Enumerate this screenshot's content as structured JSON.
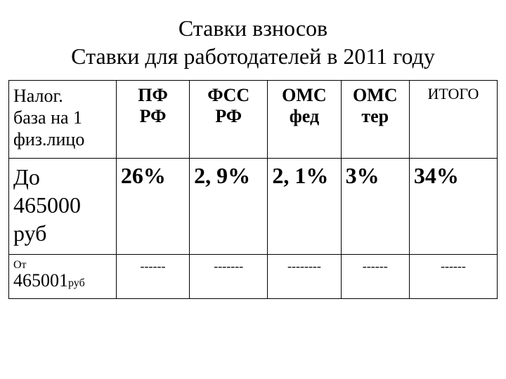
{
  "title_line1": "Ставки взносов",
  "title_line2": "Ставки для работодателей в 2011 году",
  "table": {
    "columns": [
      {
        "lines": [
          "Налог.",
          "база на 1",
          "физ.лицо"
        ],
        "align": "left",
        "fontsize": 26
      },
      {
        "lines": [
          "ПФ",
          "РФ"
        ],
        "align": "center",
        "fontsize": 26
      },
      {
        "lines": [
          "ФСС",
          "РФ"
        ],
        "align": "center",
        "fontsize": 26
      },
      {
        "lines": [
          "ОМС",
          "фед"
        ],
        "align": "center",
        "fontsize": 26
      },
      {
        "lines": [
          "ОМС",
          "тер"
        ],
        "align": "center",
        "fontsize": 26
      },
      {
        "lines": [
          "ИТОГО"
        ],
        "align": "center",
        "fontsize": 22
      }
    ],
    "rows": [
      {
        "label_lines": [
          "До",
          "465000",
          "руб"
        ],
        "label_fontsize": 32,
        "values": [
          "26%",
          "2, 9%",
          "2, 1%",
          "3%",
          "34%"
        ],
        "value_fontsize": 32,
        "value_bold": true
      },
      {
        "label_small": "От",
        "label_main": "465001",
        "label_unit": "руб",
        "values": [
          "------",
          "-------",
          "--------",
          "------",
          "------"
        ],
        "value_fontsize": 18,
        "value_bold": false
      }
    ],
    "border_color": "#000000",
    "background_color": "#ffffff",
    "text_color": "#000000",
    "font_family": "Times New Roman"
  }
}
